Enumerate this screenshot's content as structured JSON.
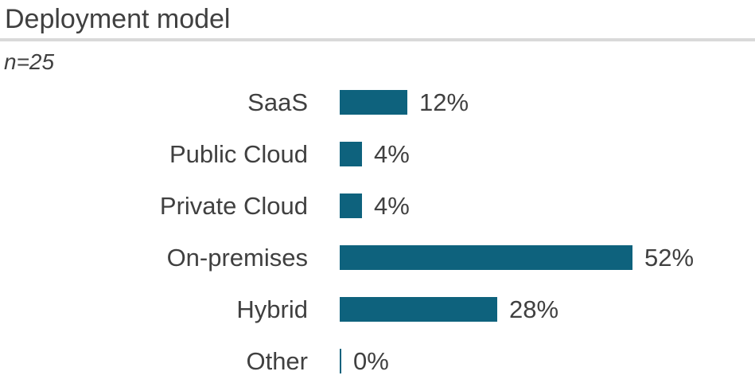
{
  "header": {
    "title": "Deployment model",
    "sample_size": "n=25"
  },
  "colors": {
    "bar": "#0e627d",
    "text": "#404040",
    "divider": "#d9d9d9",
    "background": "#ffffff"
  },
  "chart_data": {
    "type": "bar",
    "orientation": "horizontal",
    "title": "Deployment model",
    "subtitle": "n=25",
    "categories": [
      "SaaS",
      "Public Cloud",
      "Private Cloud",
      "On-premises",
      "Hybrid",
      "Other"
    ],
    "values": [
      12,
      4,
      4,
      52,
      28,
      0
    ],
    "value_labels": [
      "12%",
      "4%",
      "4%",
      "52%",
      "28%",
      "0%"
    ],
    "unit": "%",
    "xlim": [
      0,
      52
    ],
    "grid": false,
    "legend": false,
    "value_labels_position": "end-of-bar",
    "category_labels_position": "left"
  }
}
